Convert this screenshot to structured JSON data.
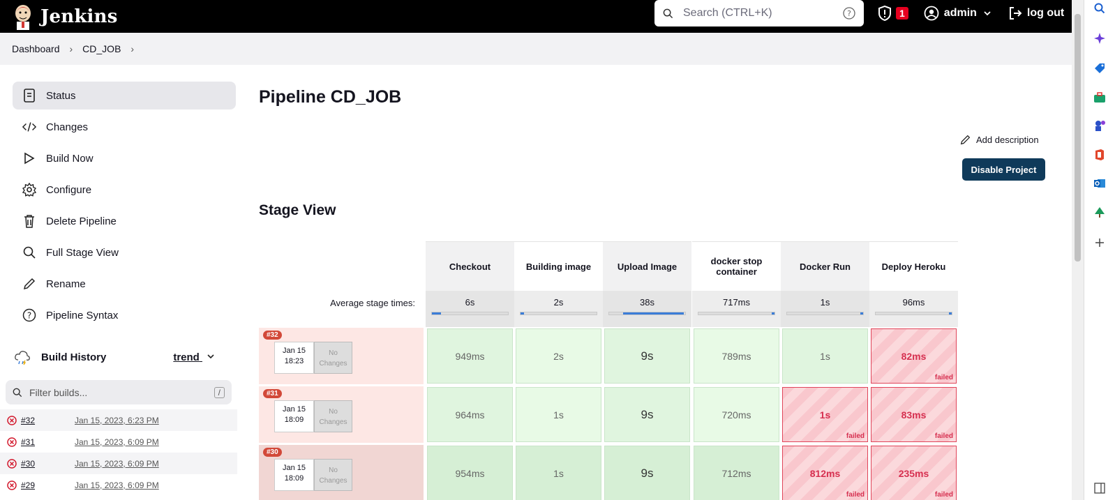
{
  "header": {
    "app_name": "Jenkins",
    "search_placeholder": "Search (CTRL+K)",
    "security_count": "1",
    "user": "admin",
    "logout": "log out"
  },
  "breadcrumb": [
    "Dashboard",
    "CD_JOB"
  ],
  "sidebar": {
    "items": [
      {
        "label": "Status",
        "icon": "status-icon"
      },
      {
        "label": "Changes",
        "icon": "code-icon"
      },
      {
        "label": "Build Now",
        "icon": "play-icon"
      },
      {
        "label": "Configure",
        "icon": "gear-icon"
      },
      {
        "label": "Delete Pipeline",
        "icon": "trash-icon"
      },
      {
        "label": "Full Stage View",
        "icon": "search-icon"
      },
      {
        "label": "Rename",
        "icon": "pencil-icon"
      },
      {
        "label": "Pipeline Syntax",
        "icon": "help-icon"
      }
    ]
  },
  "build_history": {
    "title": "Build History",
    "trend": "trend",
    "filter_placeholder": "Filter builds...",
    "filter_shortcut": "/",
    "builds": [
      {
        "number": "#32",
        "date": "Jan 15, 2023, 6:23 PM"
      },
      {
        "number": "#31",
        "date": "Jan 15, 2023, 6:09 PM"
      },
      {
        "number": "#30",
        "date": "Jan 15, 2023, 6:09 PM"
      },
      {
        "number": "#29",
        "date": "Jan 15, 2023, 6:09 PM"
      }
    ]
  },
  "main": {
    "title": "Pipeline CD_JOB",
    "add_description": "Add description",
    "disable_button": "Disable Project",
    "stage_view_title": "Stage View",
    "avg_label": "Average stage times:",
    "stages": [
      {
        "name": "Checkout",
        "avg": "6s",
        "avg_fill": 0.12
      },
      {
        "name": "Building image",
        "avg": "2s",
        "avg_fill": 0.05
      },
      {
        "name": "Upload Image",
        "avg": "38s",
        "avg_fill": 0.8
      },
      {
        "name": "docker stop container",
        "avg": "717ms",
        "avg_fill": 0.02
      },
      {
        "name": "Docker Run",
        "avg": "1s",
        "avg_fill": 0.03
      },
      {
        "name": "Deploy Heroku",
        "avg": "96ms",
        "avg_fill": 0.02
      }
    ],
    "runs": [
      {
        "badge": "#32",
        "date": "Jan 15",
        "time": "18:23",
        "changes": "No Changes",
        "cells": [
          {
            "value": "949ms",
            "status": "success"
          },
          {
            "value": "2s",
            "status": "success"
          },
          {
            "value": "9s",
            "status": "success"
          },
          {
            "value": "789ms",
            "status": "success"
          },
          {
            "value": "1s",
            "status": "success"
          },
          {
            "value": "82ms",
            "status": "failed"
          }
        ]
      },
      {
        "badge": "#31",
        "date": "Jan 15",
        "time": "18:09",
        "changes": "No Changes",
        "cells": [
          {
            "value": "964ms",
            "status": "success"
          },
          {
            "value": "1s",
            "status": "success"
          },
          {
            "value": "9s",
            "status": "success"
          },
          {
            "value": "720ms",
            "status": "success"
          },
          {
            "value": "1s",
            "status": "failed"
          },
          {
            "value": "83ms",
            "status": "failed"
          }
        ]
      },
      {
        "badge": "#30",
        "date": "Jan 15",
        "time": "18:09",
        "changes": "No Changes",
        "cells": [
          {
            "value": "954ms",
            "status": "success"
          },
          {
            "value": "1s",
            "status": "success"
          },
          {
            "value": "9s",
            "status": "success"
          },
          {
            "value": "712ms",
            "status": "success"
          },
          {
            "value": "812ms",
            "status": "failed"
          },
          {
            "value": "235ms",
            "status": "failed"
          }
        ]
      }
    ],
    "failed_label": "failed"
  }
}
